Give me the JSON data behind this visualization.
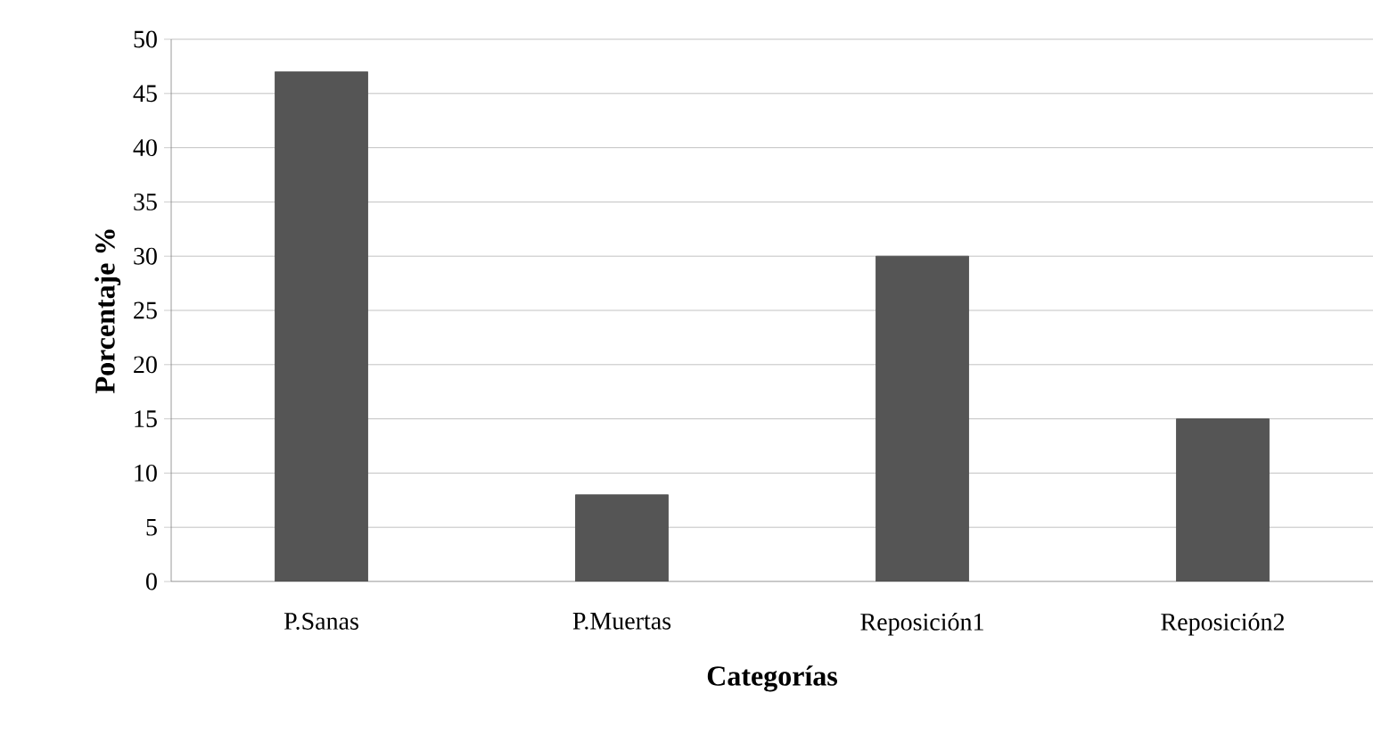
{
  "chart_data": {
    "type": "bar",
    "xlabel": "Categorías",
    "ylabel": "Porcentaje %",
    "categories": [
      "P.Sanas",
      "P.Muertas",
      "Reposición1",
      "Reposición2"
    ],
    "values": [
      47,
      8,
      30,
      15
    ],
    "color": "#555555",
    "ylim": [
      0,
      50
    ],
    "yticks": [
      0,
      5,
      10,
      15,
      20,
      25,
      30,
      35,
      40,
      45,
      50
    ],
    "grid": "y"
  }
}
